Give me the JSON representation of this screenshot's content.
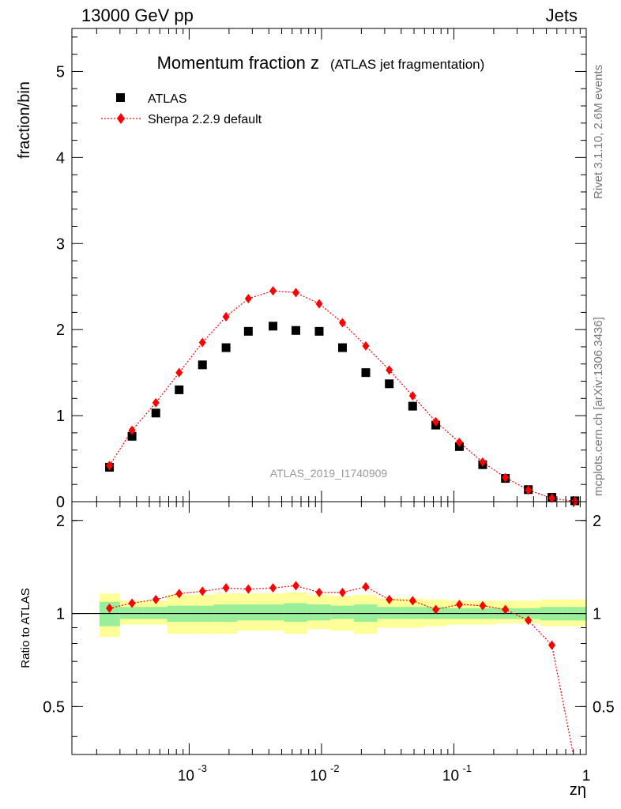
{
  "header": {
    "energy": "13000 GeV pp",
    "category": "Jets"
  },
  "side_text": {
    "rivet": "Rivet 3.1.10,  2.6M events",
    "source": "mcplots.cern.ch [arXiv:1306.3436]"
  },
  "chart_data": [
    {
      "type": "scatter",
      "title_main": "Momentum fraction z",
      "title_sub": "(ATLAS jet fragmentation)",
      "ylabel": "fraction/bin",
      "analysis_label": "ATLAS_2019_I1740909",
      "xscale": "log",
      "xlim": [
        0.00013,
        1.0
      ],
      "ylim": [
        0,
        5.5
      ],
      "yticks": [
        0,
        1,
        2,
        3,
        4,
        5
      ],
      "legend_position": "top-left",
      "colors": {
        "data": "#000000",
        "mc": "#ff0000"
      },
      "series": [
        {
          "name": "ATLAS",
          "marker": "square",
          "x": [
            0.00025,
            0.00037,
            0.00056,
            0.00084,
            0.00126,
            0.0019,
            0.0028,
            0.0043,
            0.0064,
            0.0096,
            0.0144,
            0.0216,
            0.0325,
            0.0488,
            0.073,
            0.11,
            0.165,
            0.245,
            0.365,
            0.55,
            0.82
          ],
          "y": [
            0.4,
            0.76,
            1.03,
            1.3,
            1.59,
            1.79,
            1.98,
            2.04,
            1.99,
            1.98,
            1.79,
            1.5,
            1.37,
            1.11,
            0.89,
            0.64,
            0.43,
            0.27,
            0.14,
            0.05,
            0.01
          ]
        },
        {
          "name": "Sherpa 2.2.9 default",
          "marker": "diamond",
          "line": "dotted",
          "x": [
            0.00025,
            0.00037,
            0.00056,
            0.00084,
            0.00126,
            0.0019,
            0.0028,
            0.0043,
            0.0064,
            0.0096,
            0.0144,
            0.0216,
            0.0325,
            0.0488,
            0.073,
            0.11,
            0.165,
            0.245,
            0.365,
            0.55,
            0.82
          ],
          "y": [
            0.42,
            0.83,
            1.15,
            1.5,
            1.85,
            2.15,
            2.36,
            2.45,
            2.43,
            2.3,
            2.08,
            1.81,
            1.53,
            1.23,
            0.93,
            0.69,
            0.46,
            0.28,
            0.135,
            0.04,
            0.004
          ]
        }
      ]
    },
    {
      "type": "scatter",
      "xlabel": "zη",
      "ylabel": "Ratio to ATLAS",
      "xscale": "log",
      "xlim": [
        0.00013,
        1.0
      ],
      "ylim": [
        0.35,
        2.3
      ],
      "yticks": [
        0.5,
        1,
        2
      ],
      "xticklabels": [
        "10^-3",
        "10^-2",
        "10^-1",
        "1"
      ],
      "colors": {
        "band_inner": "#99ee99",
        "band_outer": "#ffff99",
        "mc": "#ff0000",
        "reference": "#000000"
      },
      "uncertainty_bands": {
        "bin_edges": [
          0.00021,
          0.0003,
          0.00045,
          0.00068,
          0.00102,
          0.00153,
          0.0023,
          0.00345,
          0.0052,
          0.0078,
          0.0117,
          0.0176,
          0.0264,
          0.0396,
          0.0594,
          0.089,
          0.134,
          0.2,
          0.3,
          0.45,
          0.67,
          1.0
        ],
        "inner_low": [
          0.91,
          0.96,
          0.96,
          0.94,
          0.94,
          0.94,
          0.95,
          0.95,
          0.94,
          0.95,
          0.96,
          0.94,
          0.96,
          0.96,
          0.96,
          0.96,
          0.96,
          0.96,
          0.96,
          0.95,
          0.95
        ],
        "inner_high": [
          1.09,
          1.05,
          1.05,
          1.06,
          1.06,
          1.07,
          1.07,
          1.07,
          1.08,
          1.07,
          1.06,
          1.07,
          1.05,
          1.05,
          1.05,
          1.04,
          1.04,
          1.04,
          1.04,
          1.05,
          1.05
        ],
        "outer_low": [
          0.84,
          0.92,
          0.92,
          0.86,
          0.86,
          0.86,
          0.88,
          0.88,
          0.86,
          0.89,
          0.88,
          0.86,
          0.9,
          0.9,
          0.91,
          0.92,
          0.92,
          0.93,
          0.93,
          0.91,
          0.91
        ],
        "outer_high": [
          1.16,
          1.1,
          1.1,
          1.15,
          1.15,
          1.16,
          1.16,
          1.16,
          1.17,
          1.15,
          1.14,
          1.15,
          1.12,
          1.12,
          1.11,
          1.1,
          1.1,
          1.1,
          1.1,
          1.11,
          1.11
        ]
      },
      "series": [
        {
          "name": "Sherpa 2.2.9 default",
          "marker": "diamond",
          "line": "dotted",
          "x": [
            0.00025,
            0.00037,
            0.00056,
            0.00084,
            0.00126,
            0.0019,
            0.0028,
            0.0043,
            0.0064,
            0.0096,
            0.0144,
            0.0216,
            0.0325,
            0.0488,
            0.073,
            0.11,
            0.165,
            0.245,
            0.365,
            0.55,
            0.82
          ],
          "y": [
            1.04,
            1.08,
            1.11,
            1.16,
            1.18,
            1.21,
            1.2,
            1.21,
            1.23,
            1.17,
            1.17,
            1.22,
            1.11,
            1.1,
            1.03,
            1.07,
            1.06,
            1.03,
            0.95,
            0.79,
            0.33
          ]
        }
      ]
    }
  ]
}
